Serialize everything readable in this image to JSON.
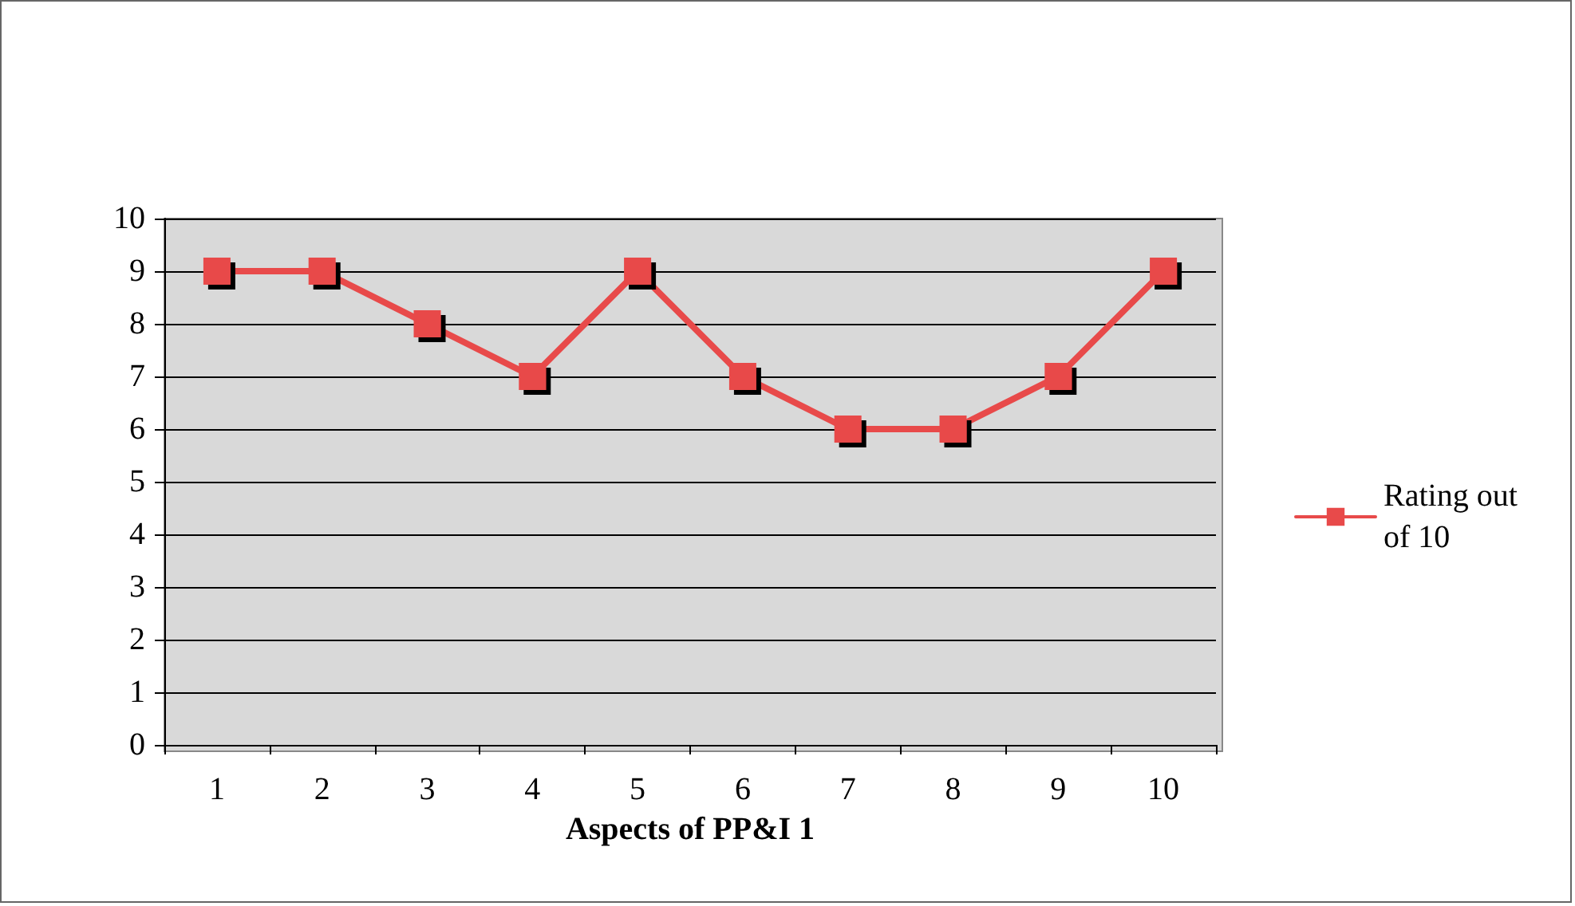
{
  "chart_data": {
    "type": "line",
    "xlabel": "Aspects of PP&I 1",
    "categories": [
      "1",
      "2",
      "3",
      "4",
      "5",
      "6",
      "7",
      "8",
      "9",
      "10"
    ],
    "series": [
      {
        "name": "Rating out\nof 10",
        "color": "#e84a4a",
        "values": [
          9,
          9,
          8,
          7,
          9,
          7,
          6,
          6,
          7,
          9
        ]
      }
    ],
    "ylim": [
      0,
      10
    ],
    "yticks": [
      0,
      1,
      2,
      3,
      4,
      5,
      6,
      7,
      8,
      9,
      10
    ],
    "grid": "y",
    "legend": "right",
    "marker": "square",
    "line_style": "solid"
  }
}
